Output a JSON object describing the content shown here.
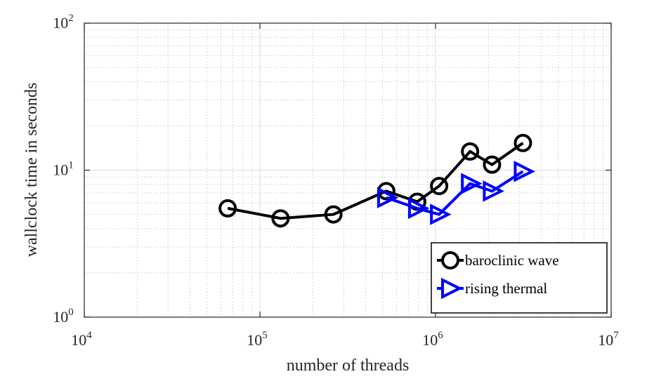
{
  "chart_data": {
    "type": "line",
    "xscale": "log",
    "yscale": "log",
    "xlim": [
      10000,
      10000000
    ],
    "ylim": [
      1,
      100
    ],
    "xlabel": "number of threads",
    "ylabel": "wallclock time in seconds",
    "grid": true,
    "minor_grid": true,
    "legend_position": "bottom-right",
    "x_ticks": [
      {
        "value": 10000,
        "base": "10",
        "exp": "4"
      },
      {
        "value": 100000,
        "base": "10",
        "exp": "5"
      },
      {
        "value": 1000000,
        "base": "10",
        "exp": "6"
      },
      {
        "value": 10000000,
        "base": "10",
        "exp": "7"
      }
    ],
    "y_ticks": [
      {
        "value": 1,
        "base": "10",
        "exp": "0"
      },
      {
        "value": 10,
        "base": "10",
        "exp": "1"
      },
      {
        "value": 100,
        "base": "10",
        "exp": "2"
      }
    ],
    "series": [
      {
        "name": "baroclinic wave",
        "color": "#000000",
        "marker": "circle",
        "x": [
          65536,
          131072,
          262144,
          524288,
          786432,
          1048576,
          1572864,
          2097152,
          3145728
        ],
        "y": [
          5.5,
          4.7,
          5.0,
          7.2,
          6.1,
          7.8,
          13.4,
          10.9,
          15.3
        ]
      },
      {
        "name": "rising thermal",
        "color": "#0000ff",
        "marker": "triangle-right",
        "x": [
          524288,
          786432,
          1048576,
          1572864,
          2097152,
          3145728
        ],
        "y": [
          6.5,
          5.5,
          5.0,
          8.1,
          7.2,
          9.8
        ]
      }
    ]
  }
}
